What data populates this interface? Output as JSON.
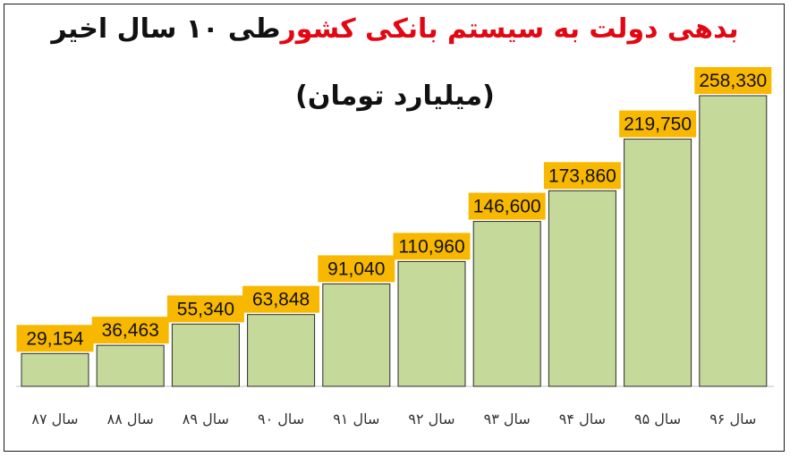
{
  "title": {
    "red_part": "بدهی دولت به سیستم بانکی کشور",
    "black_part": "طی ۱۰ سال اخیر"
  },
  "subtitle": "(میلیارد تومان)",
  "colors": {
    "bar_fill": "#c4d99a",
    "label_background": "#f9b800",
    "title_red": "#e30613"
  },
  "chart_data": {
    "type": "bar",
    "title": "بدهی دولت به سیستم بانکی کشور طی ۱۰ سال اخیر",
    "subtitle": "(میلیارد تومان)",
    "categories": [
      "سال ۸۷",
      "سال ۸۸",
      "سال ۸۹",
      "سال ۹۰",
      "سال ۹۱",
      "سال ۹۲",
      "سال ۹۳",
      "سال ۹۴",
      "سال ۹۵",
      "سال ۹۶"
    ],
    "values": [
      29154,
      36463,
      55340,
      63848,
      91040,
      110960,
      146600,
      173860,
      219750,
      258330
    ],
    "value_labels": [
      "29,154",
      "36,463",
      "55,340",
      "63,848",
      "91,040",
      "110,960",
      "146,600",
      "173,860",
      "219,750",
      "258,330"
    ],
    "ylim": [
      0,
      258330
    ],
    "grid": false,
    "legend": "none"
  }
}
